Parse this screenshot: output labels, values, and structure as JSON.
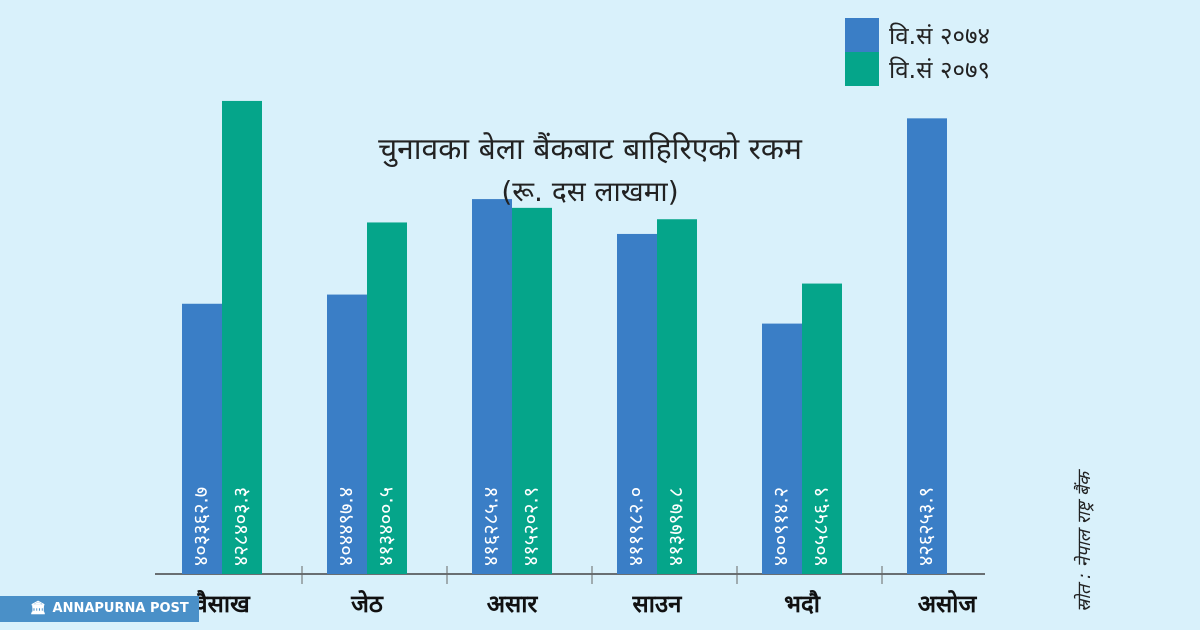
{
  "chart_data": {
    "type": "bar",
    "title": "चुनावका बेला बैंकबाट बाहिरिएको रकम",
    "subtitle": "(रू. दस लाखमा)",
    "categories": [
      "वैसाख",
      "जेठ",
      "असार",
      "साउन",
      "भदौ",
      "असोज"
    ],
    "series": [
      {
        "name": "वि.सं २०७४",
        "color": "#3a7ec6",
        "values": [
          403362.7,
          404497.4,
          416285.4,
          411982.0,
          400914.2,
          426253.9
        ],
        "labels": [
          "४०३३६२.७",
          "४०४४९७.४",
          "४१६२८५.४",
          "४११९८२.०",
          "४००९१४.२",
          "४२६२५३.९"
        ]
      },
      {
        "name": "वि.सं २०७९",
        "color": "#05a58a",
        "values": [
          428403.3,
          413400.5,
          415202.9,
          413797.8,
          405856.9,
          null
        ],
        "labels": [
          "४२८४०३.३",
          "४१३४००.५",
          "४१५२०२.९",
          "४१३७९७.८",
          "४०५८५६.९",
          null
        ]
      }
    ],
    "ylim": [
      370000,
      430000
    ],
    "legend_position": "top-right",
    "grid": false
  },
  "source": "स्रोत : नेपाल राष्ट्र बैंक",
  "brand": {
    "name": "ANNAPURNA POST",
    "icon": "building-icon"
  }
}
